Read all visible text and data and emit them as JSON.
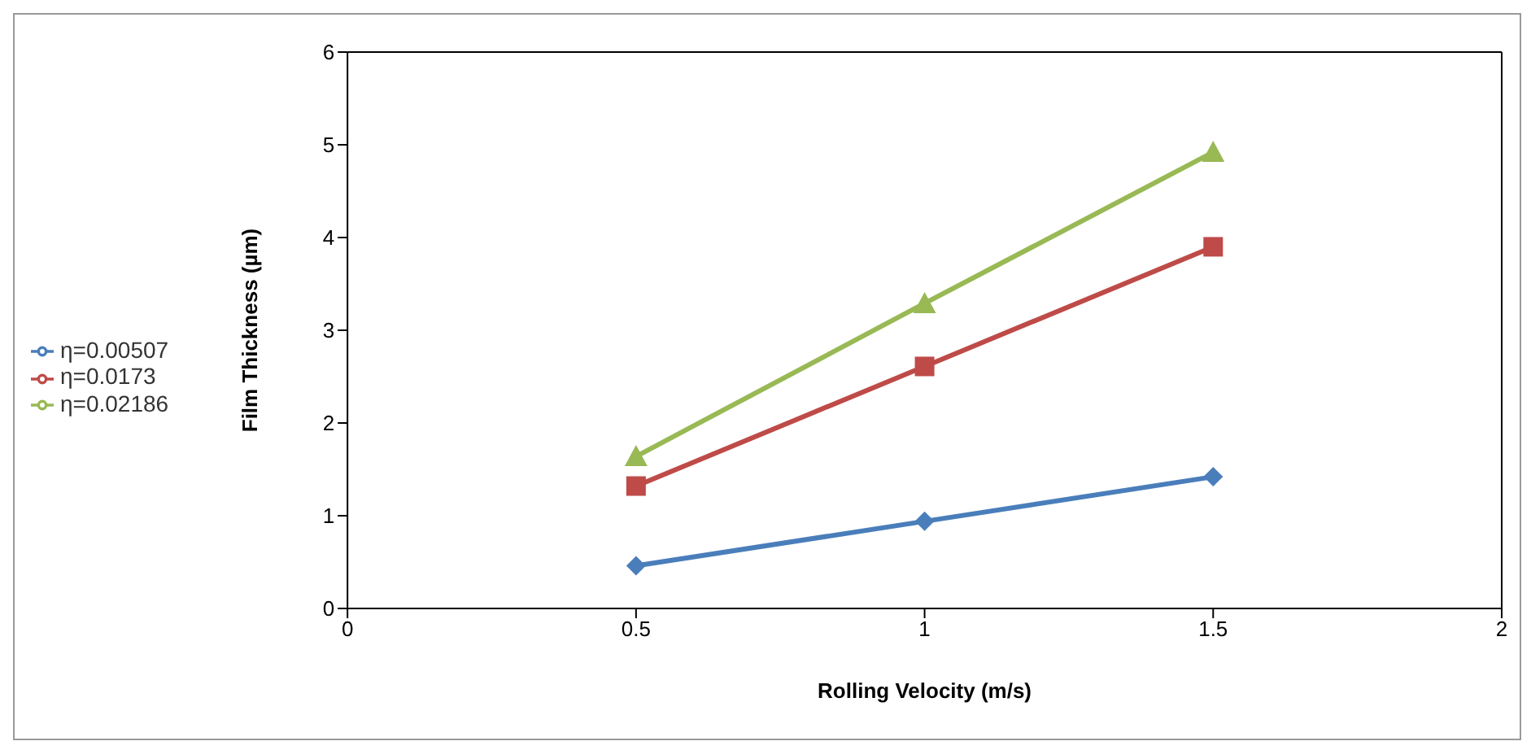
{
  "chart_data": {
    "type": "line",
    "xlabel": "Rolling Velocity (m/s)",
    "ylabel": "Film Thickness (µm)",
    "x": [
      0.5,
      1,
      1.5
    ],
    "series": [
      {
        "name": "η=0.00507",
        "color": "#4a7ebb",
        "values": [
          0.46,
          0.94,
          1.42
        ],
        "marker": "diamond"
      },
      {
        "name": "η=0.0173",
        "color": "#be4b48",
        "values": [
          1.32,
          2.61,
          3.9
        ],
        "marker": "square"
      },
      {
        "name": "η=0.02186",
        "color": "#98b954",
        "values": [
          1.64,
          3.29,
          4.92
        ],
        "marker": "triangle"
      }
    ],
    "xlim": [
      0,
      2
    ],
    "xticks": [
      0,
      0.5,
      1,
      1.5,
      2
    ],
    "ylim": [
      0,
      6
    ],
    "yticks": [
      0,
      1,
      2,
      3,
      4,
      5,
      6
    ],
    "legend": "left"
  }
}
